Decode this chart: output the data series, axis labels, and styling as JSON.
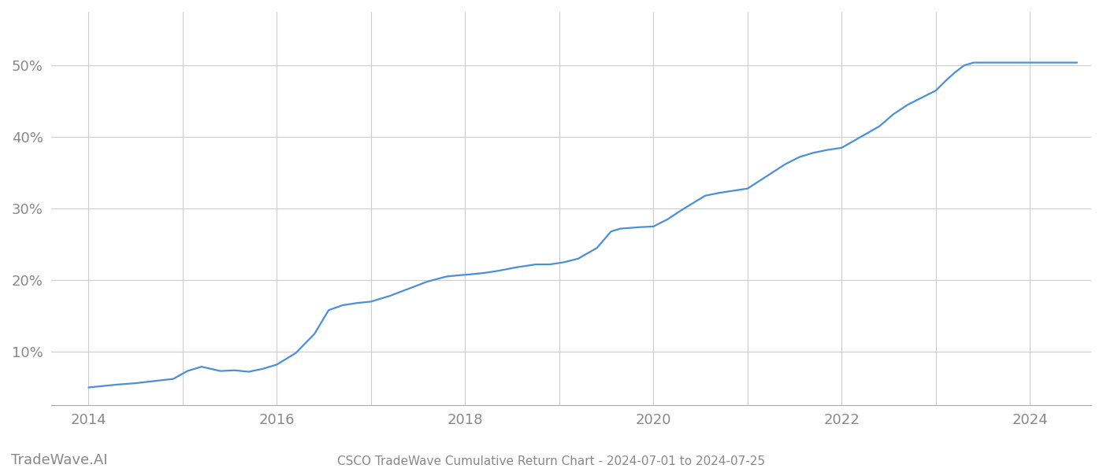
{
  "title": "CSCO TradeWave Cumulative Return Chart - 2024-07-01 to 2024-07-25",
  "watermark": "TradeWave.AI",
  "line_color": "#4a90d9",
  "background_color": "#ffffff",
  "grid_color": "#cccccc",
  "x_tick_years": [
    2014,
    2016,
    2018,
    2020,
    2022,
    2024
  ],
  "yticks": [
    0.1,
    0.2,
    0.3,
    0.4,
    0.5
  ],
  "ylim": [
    0.025,
    0.575
  ],
  "xlim": [
    2013.6,
    2024.65
  ],
  "data_x": [
    2014.0,
    2014.15,
    2014.3,
    2014.5,
    2014.7,
    2014.9,
    2015.05,
    2015.2,
    2015.4,
    2015.55,
    2015.7,
    2015.85,
    2016.0,
    2016.2,
    2016.4,
    2016.55,
    2016.7,
    2016.85,
    2017.0,
    2017.2,
    2017.4,
    2017.6,
    2017.8,
    2017.95,
    2018.05,
    2018.2,
    2018.35,
    2018.55,
    2018.75,
    2018.9,
    2019.05,
    2019.2,
    2019.4,
    2019.55,
    2019.65,
    2019.75,
    2019.85,
    2020.0,
    2020.15,
    2020.3,
    2020.45,
    2020.55,
    2020.7,
    2020.85,
    2021.0,
    2021.2,
    2021.4,
    2021.55,
    2021.7,
    2021.85,
    2022.0,
    2022.2,
    2022.4,
    2022.55,
    2022.7,
    2022.85,
    2023.0,
    2023.1,
    2023.2,
    2023.3,
    2023.4,
    2023.5,
    2023.55,
    2023.6,
    2023.65,
    2024.5
  ],
  "data_y": [
    0.05,
    0.052,
    0.054,
    0.056,
    0.059,
    0.062,
    0.073,
    0.079,
    0.073,
    0.074,
    0.072,
    0.076,
    0.082,
    0.098,
    0.125,
    0.158,
    0.165,
    0.168,
    0.17,
    0.178,
    0.188,
    0.198,
    0.205,
    0.207,
    0.208,
    0.21,
    0.213,
    0.218,
    0.222,
    0.222,
    0.225,
    0.23,
    0.245,
    0.268,
    0.272,
    0.273,
    0.274,
    0.275,
    0.285,
    0.298,
    0.31,
    0.318,
    0.322,
    0.325,
    0.328,
    0.345,
    0.362,
    0.372,
    0.378,
    0.382,
    0.385,
    0.4,
    0.415,
    0.432,
    0.445,
    0.455,
    0.465,
    0.478,
    0.49,
    0.5,
    0.504,
    0.504,
    0.504,
    0.504,
    0.504,
    0.504
  ],
  "title_fontsize": 11,
  "watermark_fontsize": 13,
  "tick_label_fontsize": 13,
  "tick_label_color": "#888888",
  "line_width": 1.6
}
